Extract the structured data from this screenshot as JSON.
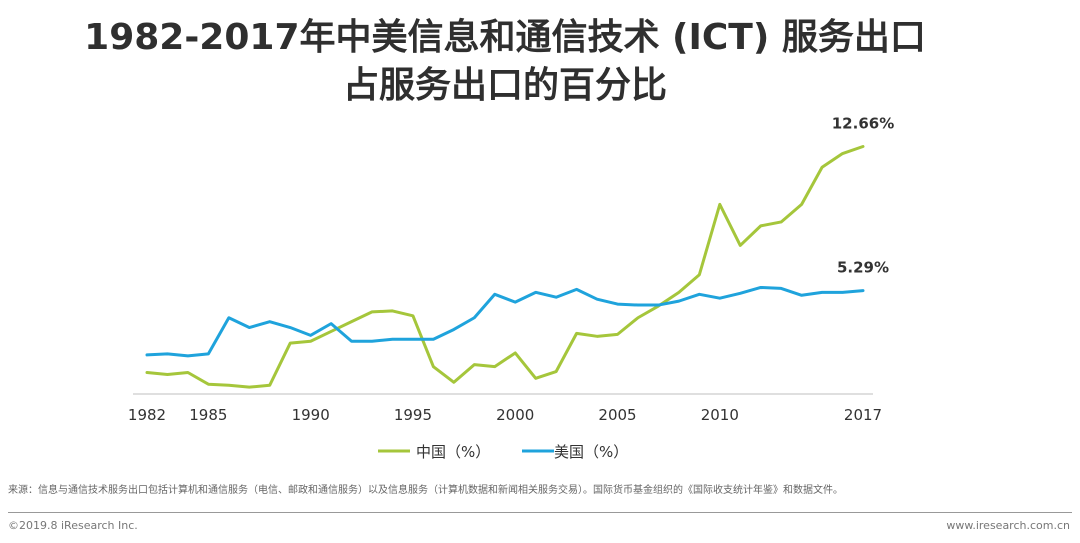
{
  "title_line1": "1982-2017年中美信息和通信技术 (ICT) 服务出口",
  "title_line2": "占服务出口的百分比",
  "source": "来源：信息与通信技术服务出口包括计算机和通信服务（电信、邮政和通信服务）以及信息服务（计算机数据和新闻相关服务交易）。国际货币基金组织的《国际收支统计年鉴》和数据文件。",
  "copyright": "©2019.8 iResearch Inc.",
  "website": "www.iresearch.com.cn",
  "colors": {
    "china": "#a5c63b",
    "usa": "#1fa3dc",
    "axis": "#bfbfbf"
  },
  "chart_data": {
    "type": "line",
    "title": "1982-2017年中美信息和通信技术 (ICT) 服务出口占服务出口的百分比",
    "xlabel": "",
    "ylabel": "",
    "x_ticks": [
      "1982",
      "1985",
      "1990",
      "1995",
      "2000",
      "2005",
      "2010",
      "2017"
    ],
    "xlim": [
      1982,
      2017
    ],
    "ylim": [
      0,
      14
    ],
    "legend_position": "bottom",
    "x": [
      1982,
      1983,
      1984,
      1985,
      1986,
      1987,
      1988,
      1989,
      1990,
      1991,
      1992,
      1993,
      1994,
      1995,
      1996,
      1997,
      1998,
      1999,
      2000,
      2001,
      2002,
      2003,
      2004,
      2005,
      2006,
      2007,
      2008,
      2009,
      2010,
      2011,
      2012,
      2013,
      2014,
      2015,
      2016,
      2017
    ],
    "series": [
      {
        "name": "中国（%）",
        "values": [
          1.1,
          1.0,
          1.1,
          0.5,
          0.45,
          0.35,
          0.45,
          2.6,
          2.7,
          3.2,
          3.7,
          4.2,
          4.25,
          4.0,
          1.4,
          0.6,
          1.5,
          1.4,
          2.1,
          0.8,
          1.15,
          3.1,
          2.95,
          3.05,
          3.9,
          4.5,
          5.2,
          6.1,
          9.7,
          7.6,
          8.6,
          8.8,
          9.7,
          11.6,
          12.3,
          12.66
        ]
      },
      {
        "name": "美国（%）",
        "values": [
          2.0,
          2.05,
          1.95,
          2.05,
          3.9,
          3.4,
          3.7,
          3.4,
          3.0,
          3.6,
          2.7,
          2.7,
          2.8,
          2.8,
          2.8,
          3.3,
          3.9,
          5.1,
          4.7,
          5.2,
          4.95,
          5.35,
          4.85,
          4.6,
          4.55,
          4.55,
          4.75,
          5.1,
          4.9,
          5.15,
          5.45,
          5.4,
          5.05,
          5.2,
          5.2,
          5.29
        ]
      }
    ],
    "annotations": [
      "12.66%",
      "5.29%"
    ]
  }
}
